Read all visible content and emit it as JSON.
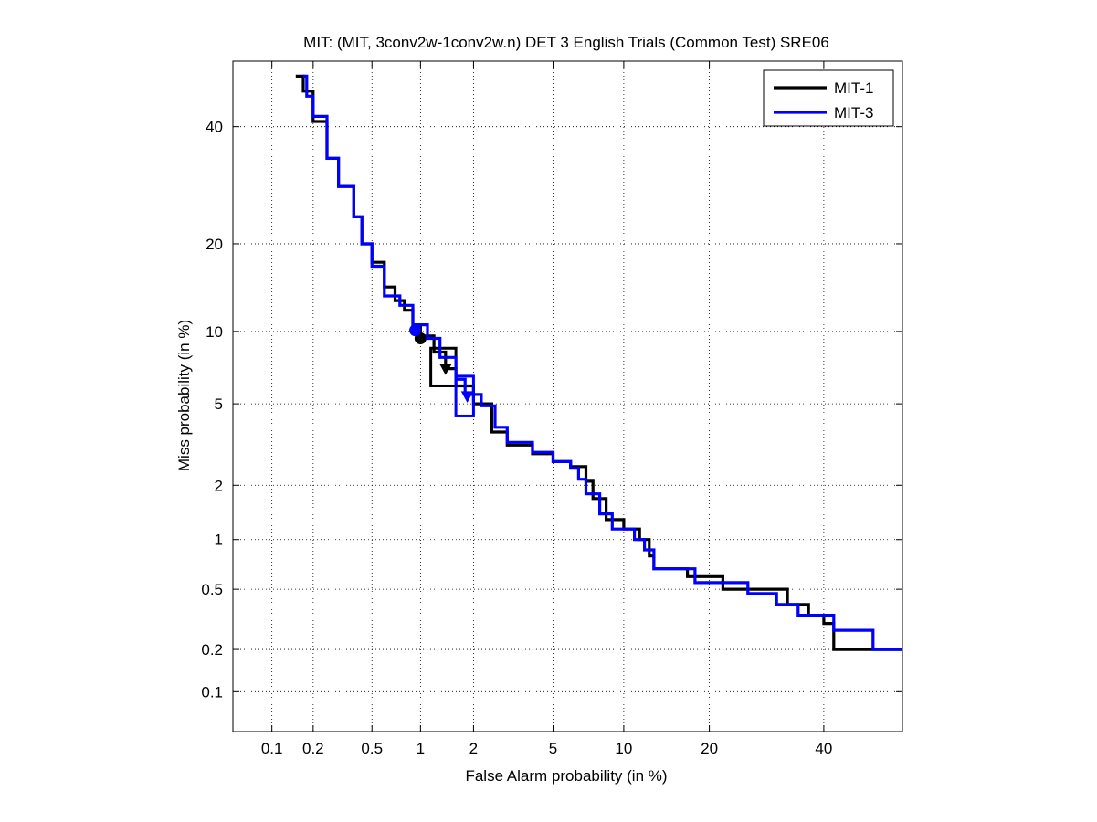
{
  "chart_data": {
    "type": "line",
    "title": "MIT: (MIT, 3conv2w-1conv2w.n) DET 3 English Trials (Common Test) SRE06",
    "xlabel": "False Alarm probability (in %)",
    "ylabel": "Miss probability (in %)",
    "x_scale": "probit",
    "y_scale": "probit",
    "xlim": [
      0.05,
      56
    ],
    "ylim": [
      0.05,
      53
    ],
    "x_ticks": [
      0.1,
      0.2,
      0.5,
      1,
      2,
      5,
      10,
      20,
      40
    ],
    "x_tick_labels": [
      "0.1",
      "0.2",
      "0.5",
      "1",
      "2",
      "5",
      "10",
      "20",
      "40"
    ],
    "y_ticks": [
      0.1,
      0.2,
      0.5,
      1,
      2,
      5,
      10,
      20,
      40
    ],
    "y_tick_labels": [
      "0.1",
      "0.2",
      "0.5",
      "1",
      "2",
      "5",
      "10",
      "20",
      "40"
    ],
    "grid": true,
    "legend_position": "top-right",
    "series": [
      {
        "name": "MIT-1",
        "color": "#000000",
        "points": [
          [
            0.15,
            50
          ],
          [
            0.17,
            47
          ],
          [
            0.2,
            41
          ],
          [
            0.25,
            34
          ],
          [
            0.3,
            29
          ],
          [
            0.38,
            24
          ],
          [
            0.43,
            20
          ],
          [
            0.5,
            17.5
          ],
          [
            0.6,
            14.5
          ],
          [
            0.7,
            13
          ],
          [
            0.8,
            12
          ],
          [
            0.9,
            10.5
          ],
          [
            1.0,
            9.6
          ],
          [
            1.2,
            8.3
          ],
          [
            1.4,
            7.1
          ],
          [
            1.6,
            6.0
          ],
          [
            2.0,
            5.0
          ],
          [
            2.5,
            3.7
          ],
          [
            3.0,
            3.2
          ],
          [
            4.0,
            2.9
          ],
          [
            5.0,
            2.65
          ],
          [
            6.0,
            2.5
          ],
          [
            7.0,
            2.1
          ],
          [
            7.5,
            1.7
          ],
          [
            8.5,
            1.3
          ],
          [
            10.0,
            1.15
          ],
          [
            11.5,
            1.0
          ],
          [
            12.5,
            0.8
          ],
          [
            13.0,
            0.67
          ],
          [
            17.0,
            0.6
          ],
          [
            22.0,
            0.5
          ],
          [
            33.0,
            0.4
          ],
          [
            37.0,
            0.34
          ],
          [
            40.0,
            0.3
          ],
          [
            42.0,
            0.2
          ],
          [
            56.0,
            0.2
          ]
        ],
        "actual_decision": [
          1.4,
          7.1
        ],
        "actual_decision_box": {
          "fa": [
            1.15,
            1.6
          ],
          "miss": [
            6.0,
            8.6
          ]
        },
        "min_dcf_point": [
          1.0,
          9.4
        ]
      },
      {
        "name": "MIT-3",
        "color": "#0000ff",
        "points": [
          [
            0.17,
            50
          ],
          [
            0.18,
            46
          ],
          [
            0.2,
            42
          ],
          [
            0.25,
            34
          ],
          [
            0.3,
            29
          ],
          [
            0.38,
            24
          ],
          [
            0.43,
            20
          ],
          [
            0.5,
            17
          ],
          [
            0.6,
            13.5
          ],
          [
            0.75,
            12.5
          ],
          [
            0.9,
            10.6
          ],
          [
            1.1,
            9.4
          ],
          [
            1.3,
            7.9
          ],
          [
            1.6,
            6.4
          ],
          [
            1.8,
            5.5
          ],
          [
            2.2,
            4.9
          ],
          [
            2.6,
            3.9
          ],
          [
            3.0,
            3.3
          ],
          [
            4.0,
            2.95
          ],
          [
            5.0,
            2.65
          ],
          [
            6.0,
            2.45
          ],
          [
            6.5,
            2.15
          ],
          [
            7.0,
            1.8
          ],
          [
            8.0,
            1.4
          ],
          [
            9.0,
            1.15
          ],
          [
            11.0,
            1.0
          ],
          [
            12.0,
            0.87
          ],
          [
            13.0,
            0.67
          ],
          [
            18.0,
            0.55
          ],
          [
            26.0,
            0.47
          ],
          [
            31.0,
            0.4
          ],
          [
            35.0,
            0.34
          ],
          [
            42.0,
            0.27
          ],
          [
            50.0,
            0.2
          ],
          [
            56.0,
            0.2
          ]
        ],
        "actual_decision": [
          1.85,
          5.4
        ],
        "actual_decision_box": {
          "fa": [
            1.6,
            2.0
          ],
          "miss": [
            4.4,
            6.6
          ]
        },
        "min_dcf_point": [
          0.93,
          10.1
        ]
      }
    ]
  }
}
